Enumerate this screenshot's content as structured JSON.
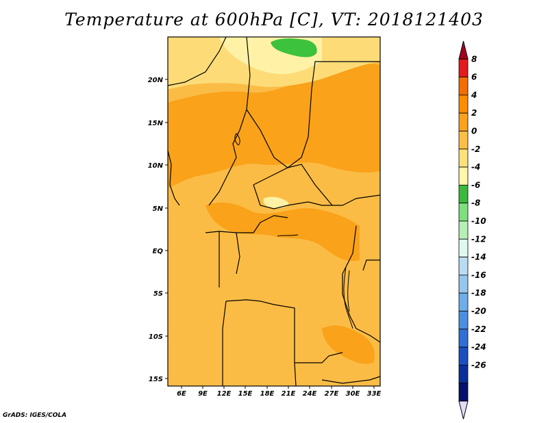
{
  "title": "Temperature at 600hPa [C], VT: 2018121403",
  "footer": "GrADS: IGES/COLA",
  "map": {
    "x_ticks": [
      "6E",
      "9E",
      "12E",
      "15E",
      "18E",
      "21E",
      "24E",
      "27E",
      "30E",
      "33E"
    ],
    "y_ticks": [
      "20N",
      "15N",
      "10N",
      "5N",
      "EQ",
      "5S",
      "10S",
      "15S"
    ]
  },
  "colorbar": {
    "labels": [
      "8",
      "6",
      "4",
      "2",
      "0",
      "-2",
      "-4",
      "-6",
      "-8",
      "-10",
      "-12",
      "-14",
      "-16",
      "-18",
      "-20",
      "-22",
      "-24",
      "-26"
    ],
    "colors": [
      "#a50021",
      "#e41a1c",
      "#f46d00",
      "#fd8d00",
      "#fba21d",
      "#fbbf45",
      "#fde27a",
      "#fff6a8",
      "#3cb93c",
      "#7de07d",
      "#b6f0b6",
      "#e0f8f0",
      "#b9dcf3",
      "#96c6ee",
      "#6eaee8",
      "#4b90e0",
      "#2f6fd6",
      "#1a4fc0",
      "#0b2f9a",
      "#06116b",
      "#e2dcf7"
    ]
  },
  "colors": {
    "base": "#fbbc45",
    "warm": "#f9a21a",
    "cool": "#fddc78",
    "pale": "#fff2a6",
    "green": "#3cc23c"
  }
}
